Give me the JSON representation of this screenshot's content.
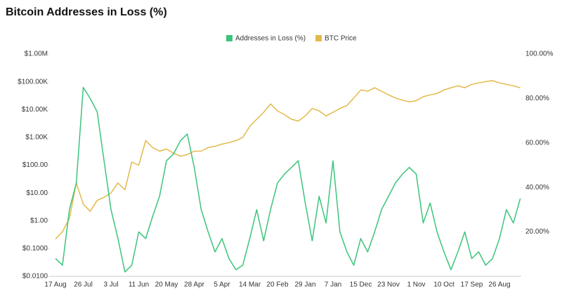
{
  "chart_data": {
    "type": "line",
    "title": "Bitcoin Addresses in Loss (%)",
    "categories": [
      "17 Aug",
      null,
      null,
      null,
      "26 Jul",
      null,
      null,
      null,
      "3 Jul",
      null,
      null,
      null,
      "11 Jun",
      null,
      null,
      null,
      "20 May",
      null,
      null,
      null,
      "28 Apr",
      null,
      null,
      null,
      "5 Apr",
      null,
      null,
      null,
      "14 Mar",
      null,
      null,
      null,
      "20 Feb",
      null,
      null,
      null,
      "29 Jan",
      null,
      null,
      null,
      "7 Jan",
      null,
      null,
      null,
      "15 Dec",
      null,
      null,
      null,
      "23 Nov",
      null,
      null,
      null,
      "1 Nov",
      null,
      null,
      null,
      "10 Oct",
      null,
      null,
      null,
      "17 Sep",
      null,
      null,
      null,
      "26 Aug",
      null,
      null,
      null
    ],
    "series": [
      {
        "name": "Addresses in Loss (%)",
        "color": "#3cc47c",
        "axis": "y2",
        "values": [
          8,
          5,
          30,
          42,
          85,
          80,
          74,
          52,
          30,
          17,
          2,
          5,
          20,
          17,
          27,
          36,
          52,
          55,
          61,
          64,
          49,
          30,
          20,
          11,
          17,
          8,
          3,
          5,
          17,
          30,
          16,
          30,
          42,
          46,
          49,
          52,
          33,
          16,
          36,
          24,
          52,
          20,
          11,
          5,
          17,
          11,
          20,
          30,
          36,
          42,
          46,
          49,
          46,
          24,
          33,
          20,
          11,
          3,
          11,
          20,
          8,
          11,
          5,
          8,
          17,
          30,
          24,
          35
        ]
      },
      {
        "name": "BTC Price",
        "color": "#e2b94a",
        "values": [
          0.22,
          0.4,
          1.2,
          23,
          4,
          2.2,
          5.4,
          7,
          10,
          23,
          13,
          130,
          100,
          770,
          430,
          320,
          380,
          270,
          210,
          240,
          320,
          320,
          430,
          480,
          570,
          650,
          770,
          1000,
          2500,
          4500,
          8000,
          16000,
          9000,
          6600,
          4500,
          3900,
          5900,
          11000,
          9000,
          5900,
          8000,
          11000,
          14000,
          26000,
          51000,
          46000,
          61000,
          46000,
          34000,
          26000,
          22000,
          19000,
          21000,
          29000,
          34000,
          38000,
          51000,
          61000,
          72000,
          61000,
          81000,
          91000,
          102000,
          110000,
          91000,
          81000,
          72000,
          61000
        ]
      }
    ],
    "ylog": true,
    "ylim": [
      0.01,
      1000000
    ],
    "yticks": [
      {
        "value": 0.01,
        "label": "$0.0100"
      },
      {
        "value": 0.1,
        "label": "$0.1000"
      },
      {
        "value": 1,
        "label": "$1.00"
      },
      {
        "value": 10,
        "label": "$10.00"
      },
      {
        "value": 100,
        "label": "$100.00"
      },
      {
        "value": 1000,
        "label": "$1.00K"
      },
      {
        "value": 10000,
        "label": "$10.00K"
      },
      {
        "value": 100000,
        "label": "$100.00K"
      },
      {
        "value": 1000000,
        "label": "$1.00M"
      }
    ],
    "y2lim": [
      0,
      100
    ],
    "y2ticks": [
      {
        "value": 20,
        "label": "20.00%"
      },
      {
        "value": 40,
        "label": "40.00%"
      },
      {
        "value": 60,
        "label": "60.00%"
      },
      {
        "value": 80,
        "label": "80.00%"
      },
      {
        "value": 100,
        "label": "100.00%"
      }
    ],
    "legend": "top"
  }
}
